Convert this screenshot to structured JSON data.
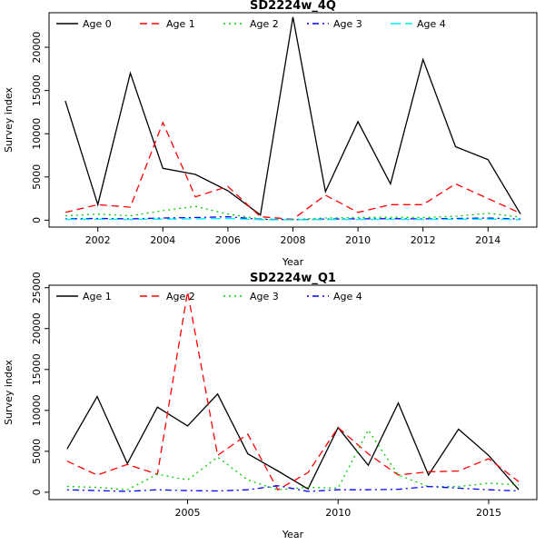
{
  "page": {
    "background": "#ffffff"
  },
  "chart_data": [
    {
      "type": "line",
      "title": "SD2224w_4Q",
      "xlabel": "Year",
      "ylabel": "Survey index",
      "grid": false,
      "legend_position": "top-left-horizontal",
      "x": [
        2001,
        2002,
        2003,
        2004,
        2005,
        2006,
        2007,
        2008,
        2009,
        2010,
        2011,
        2012,
        2013,
        2014,
        2015
      ],
      "xlim": [
        2000.5,
        2015.5
      ],
      "ylim": [
        -800,
        24000
      ],
      "xticks": [
        2002,
        2004,
        2006,
        2008,
        2010,
        2012,
        2014
      ],
      "yticks": [
        0,
        5000,
        10000,
        15000,
        20000
      ],
      "series": [
        {
          "name": "Age 0",
          "color": "#000000",
          "dash": "solid",
          "values": [
            13800,
            1800,
            17000,
            6000,
            5300,
            3400,
            600,
            23500,
            3300,
            11400,
            4200,
            18600,
            8500,
            7000,
            700
          ]
        },
        {
          "name": "Age 1",
          "color": "#ff0000",
          "dash": "dashed",
          "values": [
            900,
            1800,
            1500,
            11300,
            2700,
            3900,
            400,
            100,
            2900,
            900,
            1800,
            1800,
            4200,
            2500,
            800
          ]
        },
        {
          "name": "Age 2",
          "color": "#00cd00",
          "dash": "dotted",
          "values": [
            500,
            700,
            500,
            1100,
            1600,
            700,
            150,
            80,
            250,
            300,
            350,
            300,
            450,
            800,
            350
          ]
        },
        {
          "name": "Age 3",
          "color": "#0000ff",
          "dash": "dashdot",
          "values": [
            150,
            200,
            150,
            250,
            300,
            400,
            100,
            60,
            120,
            150,
            180,
            150,
            200,
            250,
            120
          ]
        },
        {
          "name": "Age 4",
          "color": "#00eeee",
          "dash": "longdash",
          "values": [
            80,
            100,
            80,
            120,
            150,
            200,
            60,
            40,
            70,
            80,
            90,
            80,
            100,
            120,
            60
          ]
        }
      ]
    },
    {
      "type": "line",
      "title": "SD2224w_Q1",
      "xlabel": "Year",
      "ylabel": "Survey index",
      "grid": false,
      "legend_position": "top-left-horizontal",
      "x": [
        2001,
        2002,
        2003,
        2004,
        2005,
        2006,
        2007,
        2008,
        2009,
        2010,
        2011,
        2012,
        2013,
        2014,
        2015,
        2016
      ],
      "xlim": [
        2000.4,
        2016.6
      ],
      "ylim": [
        -900,
        25300
      ],
      "xticks": [
        2005,
        2010,
        2015
      ],
      "yticks": [
        0,
        5000,
        10000,
        15000,
        20000,
        25000
      ],
      "series": [
        {
          "name": "Age 1",
          "color": "#000000",
          "dash": "solid",
          "values": [
            5300,
            11700,
            3500,
            10400,
            8100,
            12000,
            4700,
            2600,
            400,
            7900,
            3300,
            10900,
            2100,
            7700,
            4500,
            300
          ]
        },
        {
          "name": "Age 2",
          "color": "#ff0000",
          "dash": "dashed",
          "values": [
            3800,
            2100,
            3400,
            2200,
            24500,
            4500,
            7100,
            300,
            2400,
            7900,
            4700,
            2100,
            2500,
            2600,
            4100,
            1300
          ]
        },
        {
          "name": "Age 3",
          "color": "#00cd00",
          "dash": "dotted",
          "values": [
            700,
            600,
            300,
            2200,
            1500,
            4300,
            1500,
            300,
            600,
            500,
            7600,
            2100,
            700,
            700,
            1100,
            900
          ]
        },
        {
          "name": "Age 4",
          "color": "#0000ff",
          "dash": "dashdot",
          "values": [
            300,
            200,
            100,
            300,
            200,
            150,
            300,
            800,
            100,
            300,
            300,
            350,
            700,
            500,
            300,
            150
          ]
        }
      ]
    }
  ]
}
